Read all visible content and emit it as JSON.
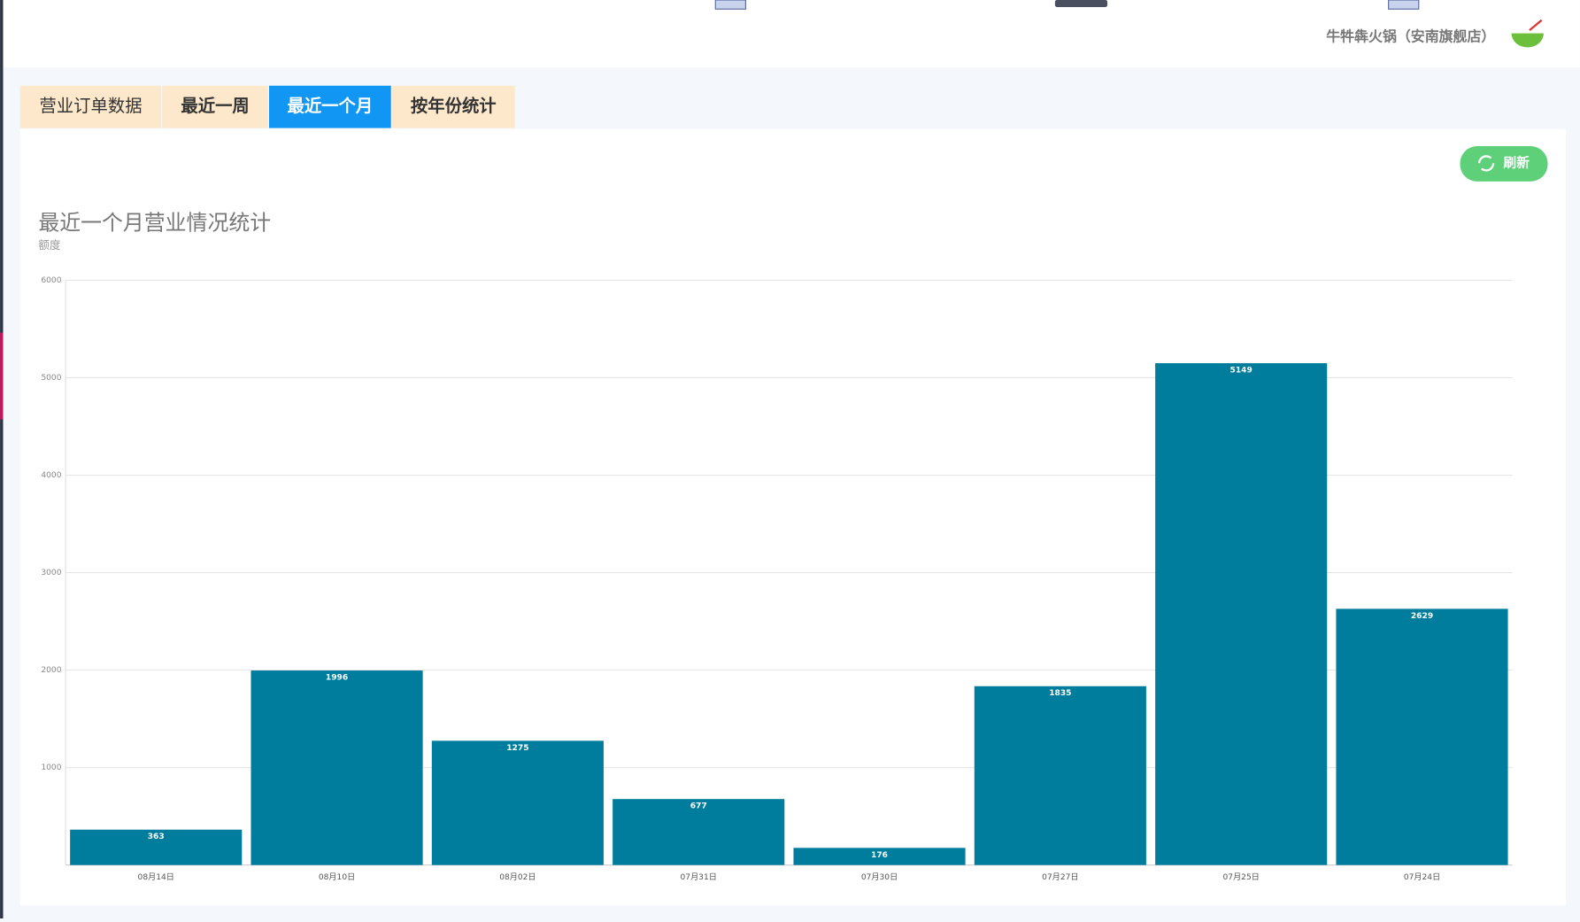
{
  "header": {
    "store_name": "牛牪犇火锅（安南旗舰店）"
  },
  "tabs": [
    "营业订单数据",
    "最近一周",
    "最近一个月",
    "按年份统计"
  ],
  "refresh_button": "刷新",
  "chart_data": {
    "type": "bar",
    "title": "最近一个月营业情况统计",
    "y_label": "额度",
    "categories": [
      "08月14日",
      "08月10日",
      "08月02日",
      "07月31日",
      "07月30日",
      "07月27日",
      "07月25日",
      "07月24日"
    ],
    "values": [
      363,
      1996,
      1275,
      677,
      176,
      1835,
      5149,
      2629
    ],
    "color": "#007c9c",
    "ylim": [
      0,
      6000
    ],
    "yticks": [
      1000,
      2000,
      3000,
      4000,
      5000,
      6000
    ],
    "grid": true
  }
}
